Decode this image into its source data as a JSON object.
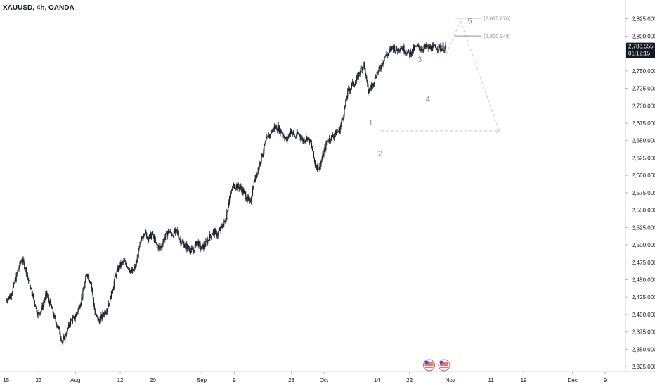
{
  "header": {
    "title": "XAUUSD, 4h, OANDA"
  },
  "price_badge": {
    "price": "2,783.555",
    "countdown": "01:12:15"
  },
  "chart_data": {
    "type": "line",
    "symbol": "XAUUSD",
    "timeframe": "4h",
    "broker": "OANDA",
    "y_ticks": [
      "2,825.000",
      "2,800.000",
      "2,775.000",
      "2,750.000",
      "2,725.000",
      "2,700.000",
      "2,675.000",
      "2,650.000",
      "2,625.000",
      "2,600.000",
      "2,575.000",
      "2,550.000",
      "2,525.000",
      "2,500.000",
      "2,475.000",
      "2,450.000",
      "2,425.000",
      "2,400.000",
      "2,375.000",
      "2,350.000",
      "2,325.000"
    ],
    "y_tick_values": [
      2825,
      2800,
      2775,
      2750,
      2725,
      2700,
      2675,
      2650,
      2625,
      2600,
      2575,
      2550,
      2525,
      2500,
      2475,
      2450,
      2425,
      2400,
      2375,
      2350,
      2325
    ],
    "ylim": [
      2318,
      2852
    ],
    "x_ticks": [
      {
        "label": "15",
        "day": 0
      },
      {
        "label": "23",
        "day": 8
      },
      {
        "label": "Aug",
        "day": 17
      },
      {
        "label": "12",
        "day": 28
      },
      {
        "label": "20",
        "day": 36
      },
      {
        "label": "Sep",
        "day": 48
      },
      {
        "label": "9",
        "day": 56
      },
      {
        "label": "23",
        "day": 70
      },
      {
        "label": "Oct",
        "day": 78
      },
      {
        "label": "14",
        "day": 91
      },
      {
        "label": "22",
        "day": 99
      },
      {
        "label": "Nov",
        "day": 109
      },
      {
        "label": "11",
        "day": 119
      },
      {
        "label": "19",
        "day": 127
      },
      {
        "label": "Dec",
        "day": 139
      },
      {
        "label": "9",
        "day": 147
      }
    ],
    "xlim_days": [
      -1.5,
      152
    ],
    "series": [
      {
        "days": [
          0,
          1,
          2,
          3,
          4,
          5,
          6,
          7,
          8,
          9,
          10,
          11,
          12,
          13,
          14,
          15,
          16,
          17,
          18,
          19,
          20,
          21,
          22,
          23,
          24,
          25,
          26,
          27,
          28,
          29,
          30,
          31,
          32,
          33,
          34,
          35,
          36,
          37,
          38,
          39,
          40,
          41,
          42,
          43,
          44,
          45,
          46,
          47,
          48,
          49,
          50,
          51,
          52,
          53,
          54,
          55,
          56,
          57,
          58,
          59,
          60,
          61,
          62,
          63,
          64,
          65,
          66,
          67,
          68,
          69,
          70,
          71,
          72,
          73,
          74,
          75,
          76,
          77,
          78,
          79,
          80,
          81,
          82,
          83,
          84,
          85,
          86,
          87,
          88,
          89,
          90,
          91,
          92,
          93,
          94,
          95,
          96,
          97,
          98,
          99,
          100,
          101,
          102,
          103,
          104,
          105,
          106,
          107,
          108
        ],
        "close": [
          2420,
          2425,
          2440,
          2462,
          2480,
          2465,
          2440,
          2420,
          2400,
          2410,
          2430,
          2415,
          2395,
          2380,
          2360,
          2375,
          2390,
          2395,
          2410,
          2430,
          2460,
          2445,
          2400,
          2390,
          2400,
          2410,
          2430,
          2455,
          2470,
          2475,
          2470,
          2460,
          2470,
          2500,
          2520,
          2510,
          2515,
          2500,
          2495,
          2510,
          2520,
          2515,
          2520,
          2505,
          2500,
          2495,
          2490,
          2505,
          2495,
          2500,
          2510,
          2520,
          2515,
          2525,
          2535,
          2570,
          2585,
          2585,
          2580,
          2570,
          2560,
          2590,
          2610,
          2630,
          2650,
          2660,
          2670,
          2668,
          2660,
          2650,
          2665,
          2655,
          2660,
          2650,
          2655,
          2645,
          2615,
          2610,
          2630,
          2650,
          2655,
          2660,
          2665,
          2690,
          2720,
          2730,
          2735,
          2750,
          2760,
          2720,
          2730,
          2745,
          2755,
          2770,
          2775,
          2785,
          2780,
          2785,
          2780,
          2775,
          2780,
          2785,
          2782,
          2784,
          2783,
          2783,
          2784,
          2783,
          2783
        ]
      }
    ],
    "elliott_waves": [
      {
        "label": "1",
        "day": 89.5,
        "price": 2672
      },
      {
        "label": "2",
        "day": 91.8,
        "price": 2628
      },
      {
        "label": "3",
        "day": 101.5,
        "price": 2763
      },
      {
        "label": "4",
        "day": 103.5,
        "price": 2706
      },
      {
        "label": "5",
        "day": 113.8,
        "price": 2818
      }
    ],
    "targets": [
      "(2,825.976)",
      "(2,800.348)"
    ],
    "target_values": [
      2825.976,
      2800.348
    ],
    "projection": [
      {
        "day": 108,
        "price": 2774
      },
      {
        "day": 111.5,
        "price": 2822
      },
      {
        "day": 121,
        "price": 2664
      }
    ],
    "projection_horizontal": {
      "from_day": 92,
      "to_day": 121,
      "price": 2664
    },
    "last_price": 2783.555,
    "grid": false
  },
  "colors": {
    "candle": "#1e222d",
    "projection": "#c8c8c8",
    "axis_text": "#131722",
    "badge_bg": "#131722",
    "wave_label": "#8a8e96"
  },
  "events": {
    "icon_names": [
      "us-flag-icon",
      "us-flag-icon"
    ]
  }
}
